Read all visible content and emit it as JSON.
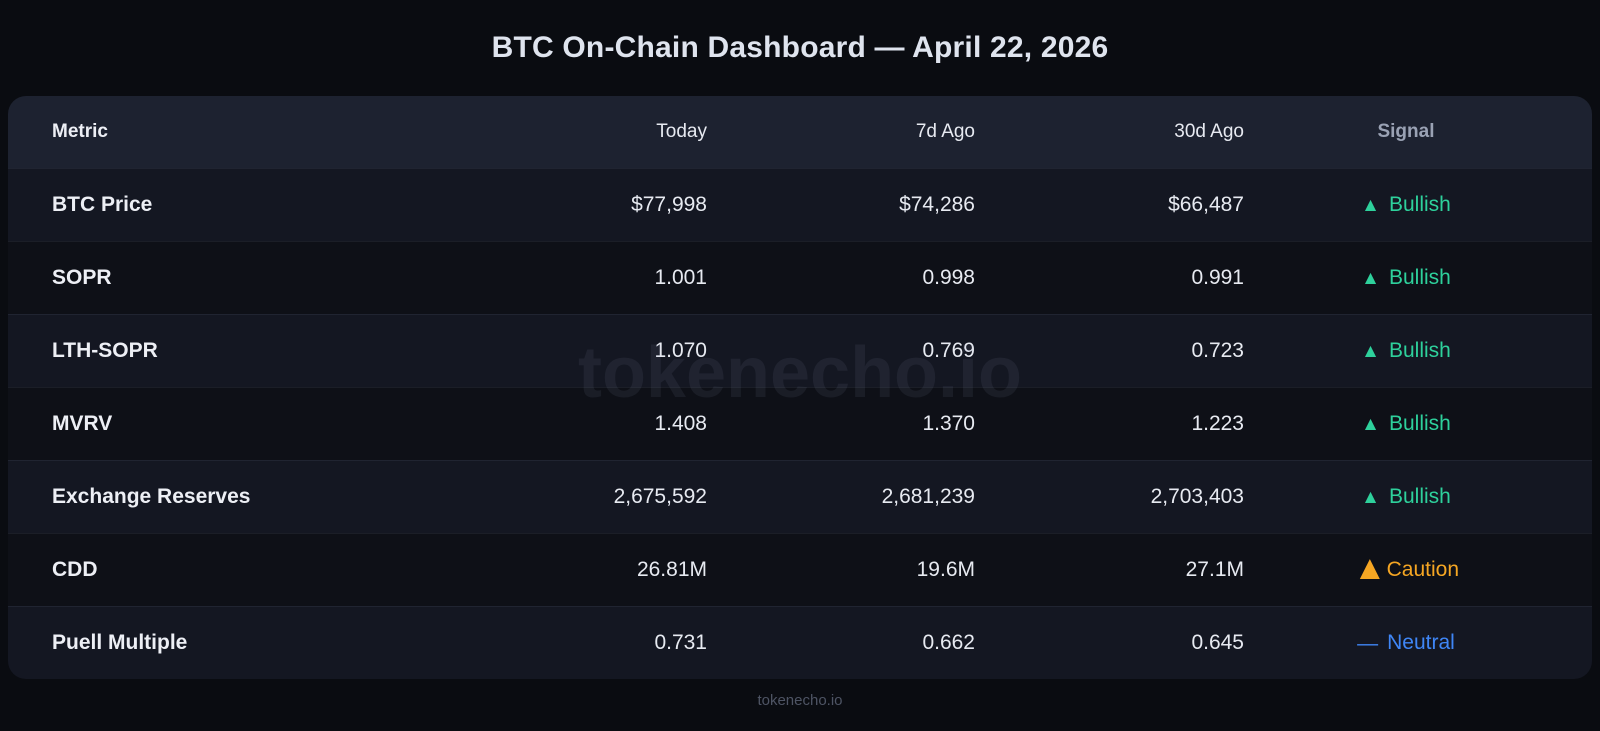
{
  "page": {
    "title": "BTC On-Chain Dashboard — April 22, 2026",
    "watermark": "tokenecho.io",
    "footer": "tokenecho.io"
  },
  "colors": {
    "bullish_green": "#2ed19c",
    "caution_amber": "#f5a623",
    "neutral_blue": "#3f86f6",
    "header_bg": "#1d2230",
    "row_bg_dark": "#0e1017",
    "row_bg_light": "#141722",
    "page_bg": "#0a0c11"
  },
  "table": {
    "columns": {
      "metric": "Metric",
      "today": "Today",
      "d7": "7d Ago",
      "d30": "30d Ago",
      "signal": "Signal"
    },
    "rows": [
      {
        "metric": "BTC Price",
        "today": "$77,998",
        "d7": "$74,286",
        "d30": "$66,487",
        "signal_icon": "▲",
        "signal_label": "Bullish",
        "signal_type": "bullish"
      },
      {
        "metric": "SOPR",
        "today": "1.001",
        "d7": "0.998",
        "d30": "0.991",
        "signal_icon": "▲",
        "signal_label": "Bullish",
        "signal_type": "bullish"
      },
      {
        "metric": "LTH-SOPR",
        "today": "1.070",
        "d7": "0.769",
        "d30": "0.723",
        "signal_icon": "▲",
        "signal_label": "Bullish",
        "signal_type": "bullish"
      },
      {
        "metric": "MVRV",
        "today": "1.408",
        "d7": "1.370",
        "d30": "1.223",
        "signal_icon": "▲",
        "signal_label": "Bullish",
        "signal_type": "bullish"
      },
      {
        "metric": "Exchange Reserves",
        "today": "2,675,592",
        "d7": "2,681,239",
        "d30": "2,703,403",
        "signal_icon": "▲",
        "signal_label": "Bullish",
        "signal_type": "bullish"
      },
      {
        "metric": "CDD",
        "today": "26.81M",
        "d7": "19.6M",
        "d30": "27.1M",
        "signal_icon": "▲",
        "signal_label": "Caution",
        "signal_type": "caution"
      },
      {
        "metric": "Puell Multiple",
        "today": "0.731",
        "d7": "0.662",
        "d30": "0.645",
        "signal_icon": "—",
        "signal_label": "Neutral",
        "signal_type": "neutral"
      }
    ]
  }
}
